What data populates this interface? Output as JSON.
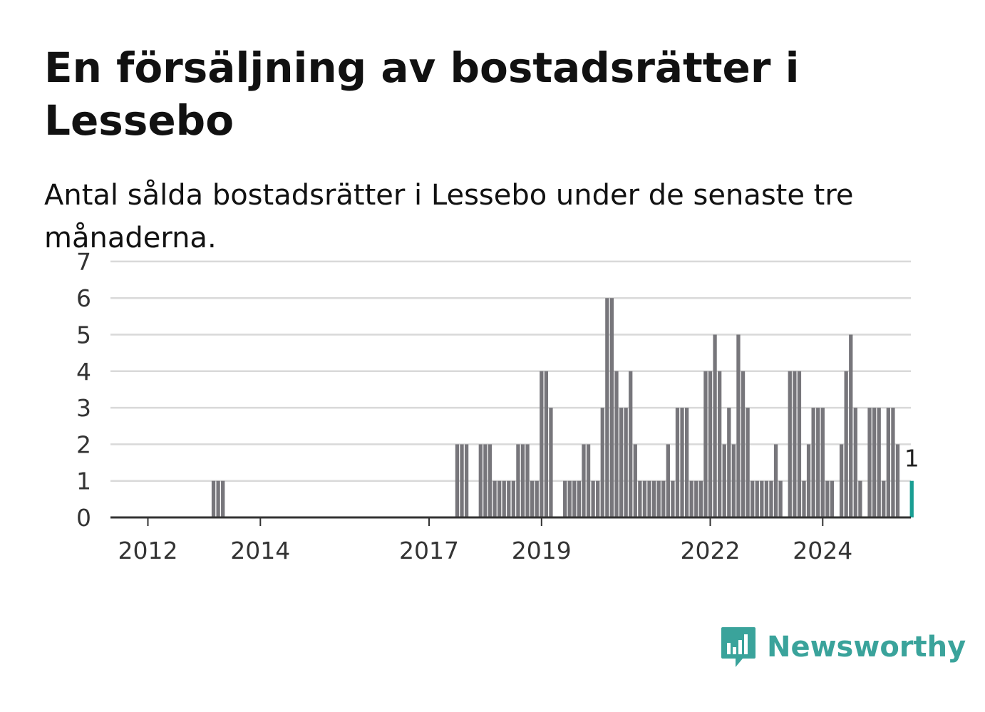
{
  "title": "En försäljning av bostadsrätter i Lessebo",
  "subtitle": "Antal sålda bostadsrätter i Lessebo under de senaste tre månaderna.",
  "brand": {
    "name": "Newsworthy",
    "color": "#3aa39b",
    "icon": "newsworthy-bar-chart-icon"
  },
  "colors": {
    "bar": "#77767b",
    "highlight": "#1a9e93",
    "grid": "#d9d9d9",
    "axis": "#333333",
    "text": "#333333"
  },
  "chart_data": {
    "type": "bar",
    "ylim": [
      0,
      7
    ],
    "yticks": [
      0,
      1,
      2,
      3,
      4,
      5,
      6,
      7
    ],
    "xticks": [
      {
        "label": "2012",
        "index": 0
      },
      {
        "label": "2014",
        "index": 24
      },
      {
        "label": "2017",
        "index": 60
      },
      {
        "label": "2019",
        "index": 84
      },
      {
        "label": "2022",
        "index": 120
      },
      {
        "label": "2024",
        "index": 144
      }
    ],
    "grid": true,
    "highlight_label": "1",
    "series": [
      {
        "values": [
          0,
          0,
          0,
          0,
          0,
          0,
          0,
          0,
          0,
          0,
          0,
          0,
          0,
          0,
          1,
          1,
          1,
          0,
          0,
          0,
          0,
          0,
          0,
          0,
          0,
          0,
          0,
          0,
          0,
          0,
          0,
          0,
          0,
          0,
          0,
          0,
          0,
          0,
          0,
          0,
          0,
          0,
          0,
          0,
          0,
          0,
          0,
          0,
          0,
          0,
          0,
          0,
          0,
          0,
          0,
          0,
          0,
          0,
          0,
          0,
          0,
          0,
          0,
          0,
          0,
          0,
          2,
          2,
          2,
          0,
          0,
          2,
          2,
          2,
          1,
          1,
          1,
          1,
          1,
          2,
          2,
          2,
          1,
          1,
          4,
          4,
          3,
          0,
          0,
          1,
          1,
          1,
          1,
          2,
          2,
          1,
          1,
          3,
          6,
          6,
          4,
          3,
          3,
          4,
          2,
          1,
          1,
          1,
          1,
          1,
          1,
          2,
          1,
          3,
          3,
          3,
          1,
          1,
          1,
          4,
          4,
          5,
          4,
          2,
          3,
          2,
          5,
          4,
          3,
          1,
          1,
          1,
          1,
          1,
          2,
          1,
          0,
          4,
          4,
          4,
          1,
          2,
          3,
          3,
          3,
          1,
          1,
          0,
          2,
          4,
          5,
          3,
          1,
          0,
          3,
          3,
          3,
          1,
          3,
          3,
          2,
          0,
          0,
          1
        ],
        "highlight_last": true
      }
    ]
  }
}
